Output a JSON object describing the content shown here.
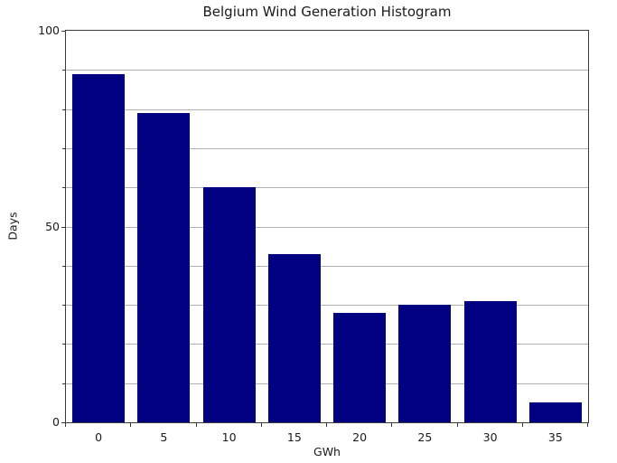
{
  "chart_data": {
    "type": "bar",
    "title": "Belgium Wind Generation Histogram",
    "xlabel": "GWh",
    "ylabel": "Days",
    "categories": [
      "0",
      "5",
      "10",
      "15",
      "20",
      "25",
      "30",
      "35"
    ],
    "values": [
      89,
      79,
      60,
      43,
      28,
      30,
      31,
      5
    ],
    "bin_width_gwh": 5,
    "ylim": [
      0,
      100
    ],
    "yticks": [
      0,
      50,
      100
    ],
    "ytick_labels": [
      "0",
      "50",
      "100"
    ],
    "grid": true,
    "grid_interval": 10,
    "legend_position": "none",
    "colors": {
      "bar_fill": "#000080",
      "gridline": "#b0b0b0",
      "spine": "#3a3a3a",
      "text": "#1a1a1a",
      "background": "#ffffff"
    }
  }
}
